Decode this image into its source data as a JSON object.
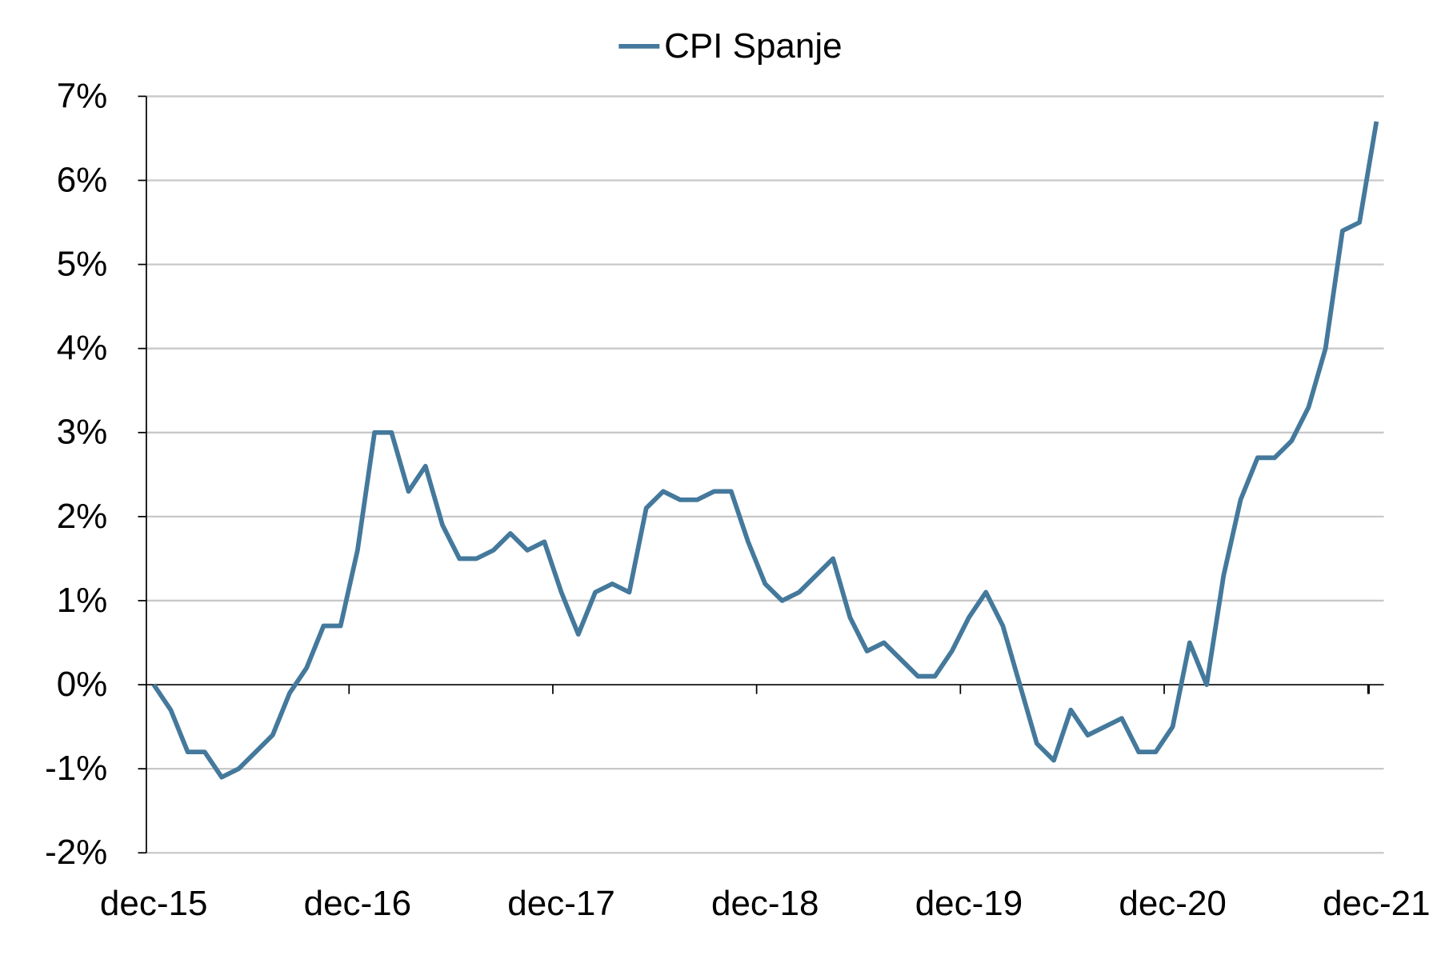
{
  "chart_data": {
    "type": "line",
    "legend": "top",
    "categories": [
      "dec-15",
      null,
      null,
      null,
      null,
      null,
      null,
      null,
      null,
      null,
      null,
      null,
      "dec-16",
      null,
      null,
      null,
      null,
      null,
      null,
      null,
      null,
      null,
      null,
      null,
      "dec-17",
      null,
      null,
      null,
      null,
      null,
      null,
      null,
      null,
      null,
      null,
      null,
      "dec-18",
      null,
      null,
      null,
      null,
      null,
      null,
      null,
      null,
      null,
      null,
      null,
      "dec-19",
      null,
      null,
      null,
      null,
      null,
      null,
      null,
      null,
      null,
      null,
      null,
      "dec-20",
      null,
      null,
      null,
      null,
      null,
      null,
      null,
      null,
      null,
      null,
      null,
      "dec-21"
    ],
    "series": [
      {
        "name": "CPI Spanje",
        "color": "#44799c",
        "values": [
          0,
          -0.3,
          -0.8,
          -0.8,
          -1.1,
          -1.0,
          -0.8,
          -0.6,
          -0.1,
          0.2,
          0.7,
          0.7,
          1.6,
          3.0,
          3.0,
          2.3,
          2.6,
          1.9,
          1.5,
          1.5,
          1.6,
          1.8,
          1.6,
          1.7,
          1.1,
          0.6,
          1.1,
          1.2,
          1.1,
          2.1,
          2.3,
          2.2,
          2.2,
          2.3,
          2.3,
          1.7,
          1.2,
          1.0,
          1.1,
          1.3,
          1.5,
          0.8,
          0.4,
          0.5,
          0.3,
          0.1,
          0.1,
          0.4,
          0.8,
          1.1,
          0.7,
          0.0,
          -0.7,
          -0.9,
          -0.3,
          -0.6,
          -0.5,
          -0.4,
          -0.8,
          -0.8,
          -0.5,
          0.5,
          0.0,
          1.3,
          2.2,
          2.7,
          2.7,
          2.9,
          3.3,
          4.0,
          5.4,
          5.5,
          6.7
        ]
      }
    ],
    "ylim": [
      -2,
      7
    ],
    "yticks": [
      {
        "value": -2,
        "label": "-2%"
      },
      {
        "value": -1,
        "label": "-1%"
      },
      {
        "value": 0,
        "label": "0%"
      },
      {
        "value": 1,
        "label": "1%"
      },
      {
        "value": 2,
        "label": "2%"
      },
      {
        "value": 3,
        "label": "3%"
      },
      {
        "value": 4,
        "label": "4%"
      },
      {
        "value": 5,
        "label": "5%"
      },
      {
        "value": 6,
        "label": "6%"
      },
      {
        "value": 7,
        "label": "7%"
      }
    ],
    "grid": true
  }
}
